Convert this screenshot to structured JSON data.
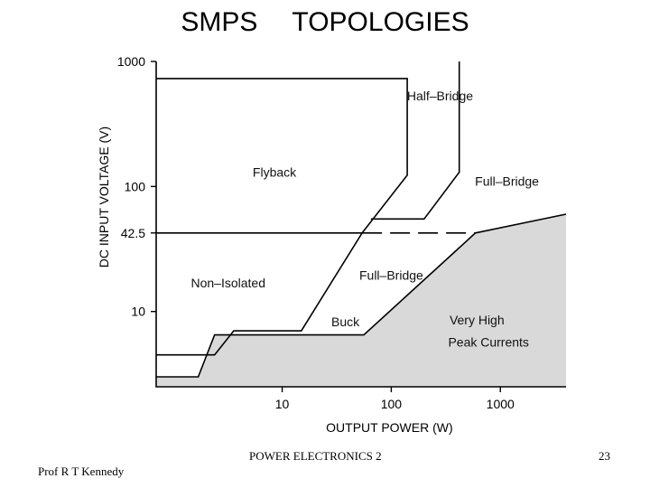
{
  "slide": {
    "title_word1": "SMPS",
    "title_word2": "TOPOLOGIES",
    "footer_author": "Prof R T Kennedy",
    "footer_course": "POWER ELECTRONICS 2",
    "page_number": "23"
  },
  "chart_data": {
    "type": "line",
    "title": "",
    "xlabel": "OUTPUT POWER (W)",
    "ylabel": "DC INPUT VOLTAGE (V)",
    "x_scale": "log",
    "y_scale": "log",
    "xlim": [
      0.7,
      4000
    ],
    "ylim": [
      2.5,
      1000
    ],
    "x_ticks": [
      {
        "value": 10,
        "label": "10"
      },
      {
        "value": 100,
        "label": "100"
      },
      {
        "value": 1000,
        "label": "1000"
      }
    ],
    "y_ticks": [
      {
        "value": 10,
        "label": "10"
      },
      {
        "value": 42.5,
        "label": "42.5"
      },
      {
        "value": 100,
        "label": "100"
      },
      {
        "value": 1000,
        "label": "1000"
      }
    ],
    "grid": false,
    "colors": {
      "shaded_region": "#d9d9d9",
      "line": "#000000"
    },
    "boundaries": [
      {
        "id": "flyback-boundary",
        "style": "solid",
        "points": [
          [
            0.7,
            730
          ],
          [
            140,
            730
          ],
          [
            140,
            123
          ],
          [
            54,
            42.5
          ],
          [
            15,
            7.0
          ],
          [
            3.6,
            7.0
          ],
          [
            2.4,
            4.5
          ],
          [
            0.7,
            4.5
          ]
        ]
      },
      {
        "id": "half-bridge-boundary",
        "style": "solid",
        "points": [
          [
            420,
            1000
          ],
          [
            420,
            130
          ],
          [
            200,
            55
          ],
          [
            65,
            55
          ]
        ]
      },
      {
        "id": "voltage-line-42-5",
        "style": "solid",
        "points": [
          [
            0.7,
            42.5
          ],
          [
            54,
            42.5
          ]
        ]
      },
      {
        "id": "voltage-line-42-5-dashed",
        "style": "dashed",
        "points": [
          [
            54,
            42.5
          ],
          [
            590,
            42.5
          ]
        ]
      },
      {
        "id": "very-high-peak-current-boundary",
        "style": "solid",
        "points": [
          [
            0.7,
            3.0
          ],
          [
            1.7,
            3.0
          ],
          [
            2.4,
            6.5
          ],
          [
            56,
            6.5
          ],
          [
            590,
            42.5
          ],
          [
            4000,
            60
          ]
        ]
      }
    ],
    "region_labels": [
      {
        "text": "Half–Bridge",
        "x": 280,
        "y": 530
      },
      {
        "text": "Flyback",
        "x": 8.5,
        "y": 130
      },
      {
        "text": "Full–Bridge",
        "x": 1150,
        "y": 110
      },
      {
        "text": "Non–Isolated",
        "x": 3.2,
        "y": 17
      },
      {
        "text": "Full–Bridge",
        "x": 100,
        "y": 19.5
      },
      {
        "text": "Buck",
        "x": 38,
        "y": 8.3
      },
      {
        "text": "Very High",
        "x": 610,
        "y": 8.6
      },
      {
        "text": "Peak Currents",
        "x": 780,
        "y": 5.7
      }
    ]
  }
}
